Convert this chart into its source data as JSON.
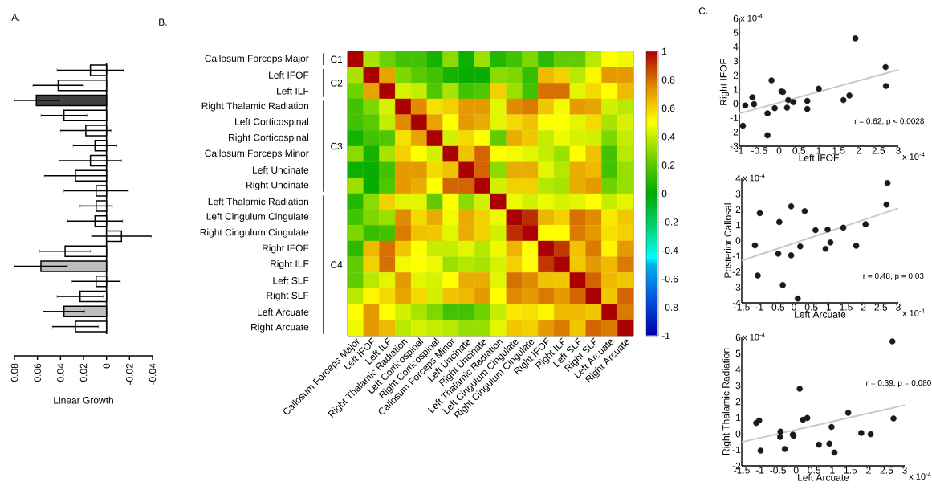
{
  "chart_data": [
    {
      "type": "bar",
      "orientation": "horizontal",
      "title": "A.",
      "xlabel": "Linear Growth",
      "categories": [
        null,
        null,
        null,
        null,
        null,
        null,
        null,
        null,
        null,
        null,
        null,
        null,
        null,
        null,
        null,
        null,
        null,
        null
      ],
      "values": [
        0.014,
        0.042,
        0.061,
        0.037,
        0.018,
        0.01,
        0.014,
        0.027,
        0.009,
        0.009,
        0.01,
        -0.013,
        0.036,
        0.057,
        0.009,
        0.023,
        0.037,
        0.027
      ],
      "errors": [
        0.029,
        0.022,
        0.019,
        0.02,
        0.022,
        0.019,
        0.027,
        0.027,
        0.028,
        0.014,
        0.024,
        0.026,
        0.022,
        0.023,
        0.021,
        0.02,
        0.018,
        0.02
      ],
      "colors": [
        "#ffffff",
        "#ffffff",
        "#404040",
        "#ffffff",
        "#ffffff",
        "#ffffff",
        "#ffffff",
        "#ffffff",
        "#ffffff",
        "#ffffff",
        "#ffffff",
        "#ffffff",
        "#ffffff",
        "#bebebe",
        "#ffffff",
        "#ffffff",
        "#bebebe",
        "#ffffff"
      ],
      "xlim": [
        0.08,
        -0.04
      ],
      "xticks": [
        0.08,
        0.06,
        0.04,
        0.02,
        0,
        -0.02,
        -0.04
      ]
    },
    {
      "type": "heatmap",
      "title": "B.",
      "categories": [
        "Callosum Forceps Major",
        "Left IFOF",
        "Left ILF",
        "Right Thalamic Radiation",
        "Left Corticospinal",
        "Right Corticospinal",
        "Callosum Forceps Minor",
        "Left Uncinate",
        "Right Uncinate",
        "Left Thalamic Radiation",
        "Left Cingulum Cingulate",
        "Right Cingulum Cingulate",
        "Right IFOF",
        "Right ILF",
        "Left SLF",
        "Right SLF",
        "Left Arcuate",
        "Right Arcuate"
      ],
      "y_categories": [
        "Callosum Forceps Major",
        "Left IFOF",
        "Left ILF",
        "Right Thalamic Radiation",
        "Left Corticospinal",
        "Right Corticospinal",
        "Callosum Forceps Minor",
        "Left Uncinate",
        "Right Uncinate",
        "Left Thalamic Radiation",
        "Left Cingulum Cingulate",
        "Right Cingulum Cingulate",
        "Right IFOF",
        "Right ILF",
        "Left SLF",
        "Right SLF",
        "Left Arcuate",
        "Right Arcuate"
      ],
      "cells": [
        [
          1,
          0.35,
          0.25,
          0.15,
          0.15,
          0.05,
          0.3,
          0.03,
          0.33,
          0.08,
          0.15,
          0.28,
          0.1,
          0.22,
          0.22,
          0.38,
          0.5,
          0.47
        ],
        [
          0.35,
          1,
          0.7,
          0.28,
          0.2,
          0.15,
          0.05,
          0.02,
          0.02,
          0.3,
          0.28,
          0.12,
          0.65,
          0.6,
          0.38,
          0.52,
          0.72,
          0.72
        ],
        [
          0.25,
          0.7,
          1,
          0.43,
          0.4,
          0.18,
          0.35,
          0.15,
          0.18,
          0.6,
          0.33,
          0.15,
          0.8,
          0.8,
          0.45,
          0.58,
          0.5,
          0.65
        ],
        [
          0.15,
          0.28,
          0.43,
          1,
          0.75,
          0.57,
          0.6,
          0.72,
          0.72,
          0.45,
          0.75,
          0.78,
          0.62,
          0.48,
          0.72,
          0.7,
          0.42,
          0.38
        ],
        [
          0.15,
          0.2,
          0.4,
          0.75,
          1,
          0.7,
          0.5,
          0.72,
          0.68,
          0.45,
          0.58,
          0.63,
          0.5,
          0.5,
          0.45,
          0.58,
          0.35,
          0.43
        ],
        [
          0.05,
          0.15,
          0.18,
          0.57,
          0.7,
          1,
          0.42,
          0.58,
          0.5,
          0.22,
          0.68,
          0.62,
          0.4,
          0.47,
          0.43,
          0.42,
          0.28,
          0.4
        ],
        [
          0.3,
          0.05,
          0.35,
          0.6,
          0.5,
          0.42,
          1,
          0.63,
          0.82,
          0.5,
          0.48,
          0.45,
          0.4,
          0.33,
          0.5,
          0.63,
          0.15,
          0.38
        ],
        [
          0.03,
          0.02,
          0.15,
          0.72,
          0.72,
          0.58,
          0.63,
          1,
          0.82,
          0.3,
          0.68,
          0.68,
          0.45,
          0.37,
          0.68,
          0.65,
          0.15,
          0.32
        ],
        [
          0.33,
          0.02,
          0.18,
          0.72,
          0.68,
          0.5,
          0.82,
          0.82,
          1,
          0.42,
          0.6,
          0.6,
          0.37,
          0.35,
          0.68,
          0.72,
          0.25,
          0.32
        ],
        [
          0.08,
          0.3,
          0.6,
          0.45,
          0.45,
          0.22,
          0.5,
          0.3,
          0.42,
          1,
          0.47,
          0.42,
          0.47,
          0.43,
          0.45,
          0.5,
          0.4,
          0.45
        ],
        [
          0.15,
          0.28,
          0.33,
          0.75,
          0.58,
          0.68,
          0.48,
          0.68,
          0.6,
          0.47,
          1,
          0.92,
          0.66,
          0.6,
          0.8,
          0.75,
          0.55,
          0.62
        ],
        [
          0.28,
          0.12,
          0.15,
          0.78,
          0.63,
          0.62,
          0.45,
          0.68,
          0.6,
          0.42,
          0.92,
          1,
          0.5,
          0.5,
          0.78,
          0.72,
          0.57,
          0.6
        ],
        [
          0.1,
          0.65,
          0.8,
          0.62,
          0.5,
          0.4,
          0.4,
          0.45,
          0.37,
          0.47,
          0.66,
          0.5,
          1,
          0.9,
          0.63,
          0.78,
          0.52,
          0.72
        ],
        [
          0.22,
          0.6,
          0.8,
          0.48,
          0.5,
          0.47,
          0.33,
          0.37,
          0.35,
          0.43,
          0.6,
          0.5,
          0.9,
          1,
          0.62,
          0.72,
          0.65,
          0.78
        ],
        [
          0.22,
          0.38,
          0.45,
          0.72,
          0.45,
          0.43,
          0.5,
          0.68,
          0.68,
          0.45,
          0.8,
          0.75,
          0.63,
          0.62,
          1,
          0.82,
          0.65,
          0.62
        ],
        [
          0.38,
          0.52,
          0.58,
          0.7,
          0.58,
          0.42,
          0.63,
          0.65,
          0.72,
          0.5,
          0.75,
          0.72,
          0.78,
          0.72,
          0.82,
          1,
          0.62,
          0.82
        ],
        [
          0.5,
          0.72,
          0.5,
          0.42,
          0.35,
          0.28,
          0.15,
          0.15,
          0.25,
          0.4,
          0.55,
          0.57,
          0.52,
          0.65,
          0.65,
          0.62,
          1,
          0.78
        ],
        [
          0.47,
          0.72,
          0.65,
          0.38,
          0.43,
          0.4,
          0.38,
          0.32,
          0.32,
          0.45,
          0.62,
          0.6,
          0.72,
          0.78,
          0.62,
          0.82,
          0.78,
          1
        ]
      ],
      "clim": [
        -1,
        1
      ],
      "cticks": [
        -1,
        -0.8,
        -0.6,
        -0.4,
        -0.2,
        0,
        0.2,
        0.4,
        0.6,
        0.8,
        1
      ],
      "annotations": [
        "C1",
        "C2",
        "C3",
        "C4"
      ]
    },
    {
      "type": "scatter",
      "title": "C.",
      "xlabel": "Left IFOF",
      "ylabel": "Right IFOF",
      "xlim": [
        -1,
        3
      ],
      "ylim": [
        -3,
        6
      ],
      "xticks": [
        -1,
        -0.5,
        0,
        0.5,
        1,
        1.5,
        2,
        2.5,
        3
      ],
      "yticks": [
        -3,
        -2,
        -1,
        0,
        1,
        2,
        3,
        4,
        5,
        6
      ],
      "series": [
        {
          "type": "scatter",
          "marker": "circle",
          "color": "#1a1a1a",
          "x": [
            -0.91,
            -0.85,
            -0.67,
            -0.63,
            -0.29,
            -0.29,
            -0.19,
            -0.11,
            0.06,
            0.1,
            0.23,
            0.2,
            0.36,
            0.71,
            0.71,
            1.0,
            1.62,
            1.77,
            1.92,
            2.68,
            2.69
          ],
          "values": [
            -1.56,
            -0.13,
            0.44,
            -0.04,
            -0.69,
            -2.23,
            1.64,
            -0.32,
            0.86,
            0.82,
            0.25,
            -0.29,
            0.1,
            0.19,
            -0.38,
            1.05,
            0.25,
            0.57,
            4.59,
            2.57,
            1.24
          ]
        },
        {
          "type": "line",
          "marker": "none",
          "color": "#c8c8c8",
          "x": [
            -1,
            3
          ],
          "values": [
            -0.7,
            2.38
          ]
        }
      ],
      "annotations": [
        "x 10$^{-4}$",
        "x 10$^{-4}$",
        "r = 0.62, p < 0.0028"
      ]
    },
    {
      "type": "scatter",
      "xlabel": "Left Arcuate",
      "ylabel": "Posterior Callosal",
      "xlim": [
        -1.5,
        3
      ],
      "ylim": [
        -4,
        4
      ],
      "xticks": [
        -1.5,
        -1,
        -0.5,
        0,
        0.5,
        1,
        1.5,
        2,
        2.5,
        3
      ],
      "yticks": [
        -4,
        -3,
        -2,
        -1,
        0,
        1,
        2,
        3,
        4
      ],
      "series": [
        {
          "type": "scatter",
          "marker": "circle",
          "color": "#1a1a1a",
          "x": [
            -1.12,
            -0.98,
            -1.04,
            -0.42,
            -0.45,
            -0.32,
            -0.08,
            -0.08,
            0.11,
            0.18,
            0.31,
            0.62,
            0.97,
            0.91,
            1.05,
            1.42,
            1.79,
            2.06,
            2.66,
            2.69
          ],
          "values": [
            -0.31,
            1.76,
            -2.25,
            1.19,
            -0.85,
            -2.86,
            2.2,
            -0.95,
            -3.73,
            -0.38,
            1.89,
            0.67,
            0.71,
            -0.53,
            -0.12,
            0.83,
            -0.33,
            1.05,
            2.31,
            3.7
          ]
        },
        {
          "type": "line",
          "marker": "none",
          "color": "#c8c8c8",
          "x": [
            -1.5,
            3
          ],
          "values": [
            -1.29,
            2.07
          ]
        }
      ],
      "annotations": [
        "x 10$^{-4}$",
        "x 10$^{-4}$",
        "r = 0.48, p = 0.03"
      ]
    },
    {
      "type": "scatter",
      "xlabel": "Left Arcuate",
      "ylabel": "Right Thalamic Radiation",
      "xlim": [
        -1.5,
        3
      ],
      "ylim": [
        -2,
        6
      ],
      "xticks": [
        -1.5,
        -1,
        -0.5,
        0,
        0.5,
        1,
        1.5,
        2,
        2.5,
        3
      ],
      "yticks": [
        -2,
        -1,
        0,
        1,
        2,
        3,
        4,
        5,
        6
      ],
      "series": [
        {
          "type": "scatter",
          "marker": "circle",
          "color": "#1a1a1a",
          "x": [
            -1.1,
            -1.02,
            -0.98,
            -0.43,
            -0.44,
            -0.31,
            -0.09,
            -0.07,
            0.1,
            0.19,
            0.31,
            0.63,
            0.92,
            0.98,
            1.06,
            1.44,
            1.8,
            2.06,
            2.66,
            2.69
          ],
          "values": [
            0.67,
            0.82,
            -1.05,
            0.13,
            -0.2,
            -0.95,
            -0.05,
            -0.13,
            2.8,
            0.87,
            0.98,
            -0.68,
            -0.62,
            0.42,
            -1.17,
            1.3,
            0.05,
            -0.03,
            5.75,
            0.95
          ]
        },
        {
          "type": "line",
          "marker": "none",
          "color": "#c8c8c8",
          "x": [
            -1.5,
            3
          ],
          "values": [
            -0.52,
            1.78
          ]
        }
      ],
      "annotations": [
        "x 10$^{-4}$",
        "x 10$^{-4}$",
        "r = 0.39, p = 0.080"
      ]
    }
  ]
}
